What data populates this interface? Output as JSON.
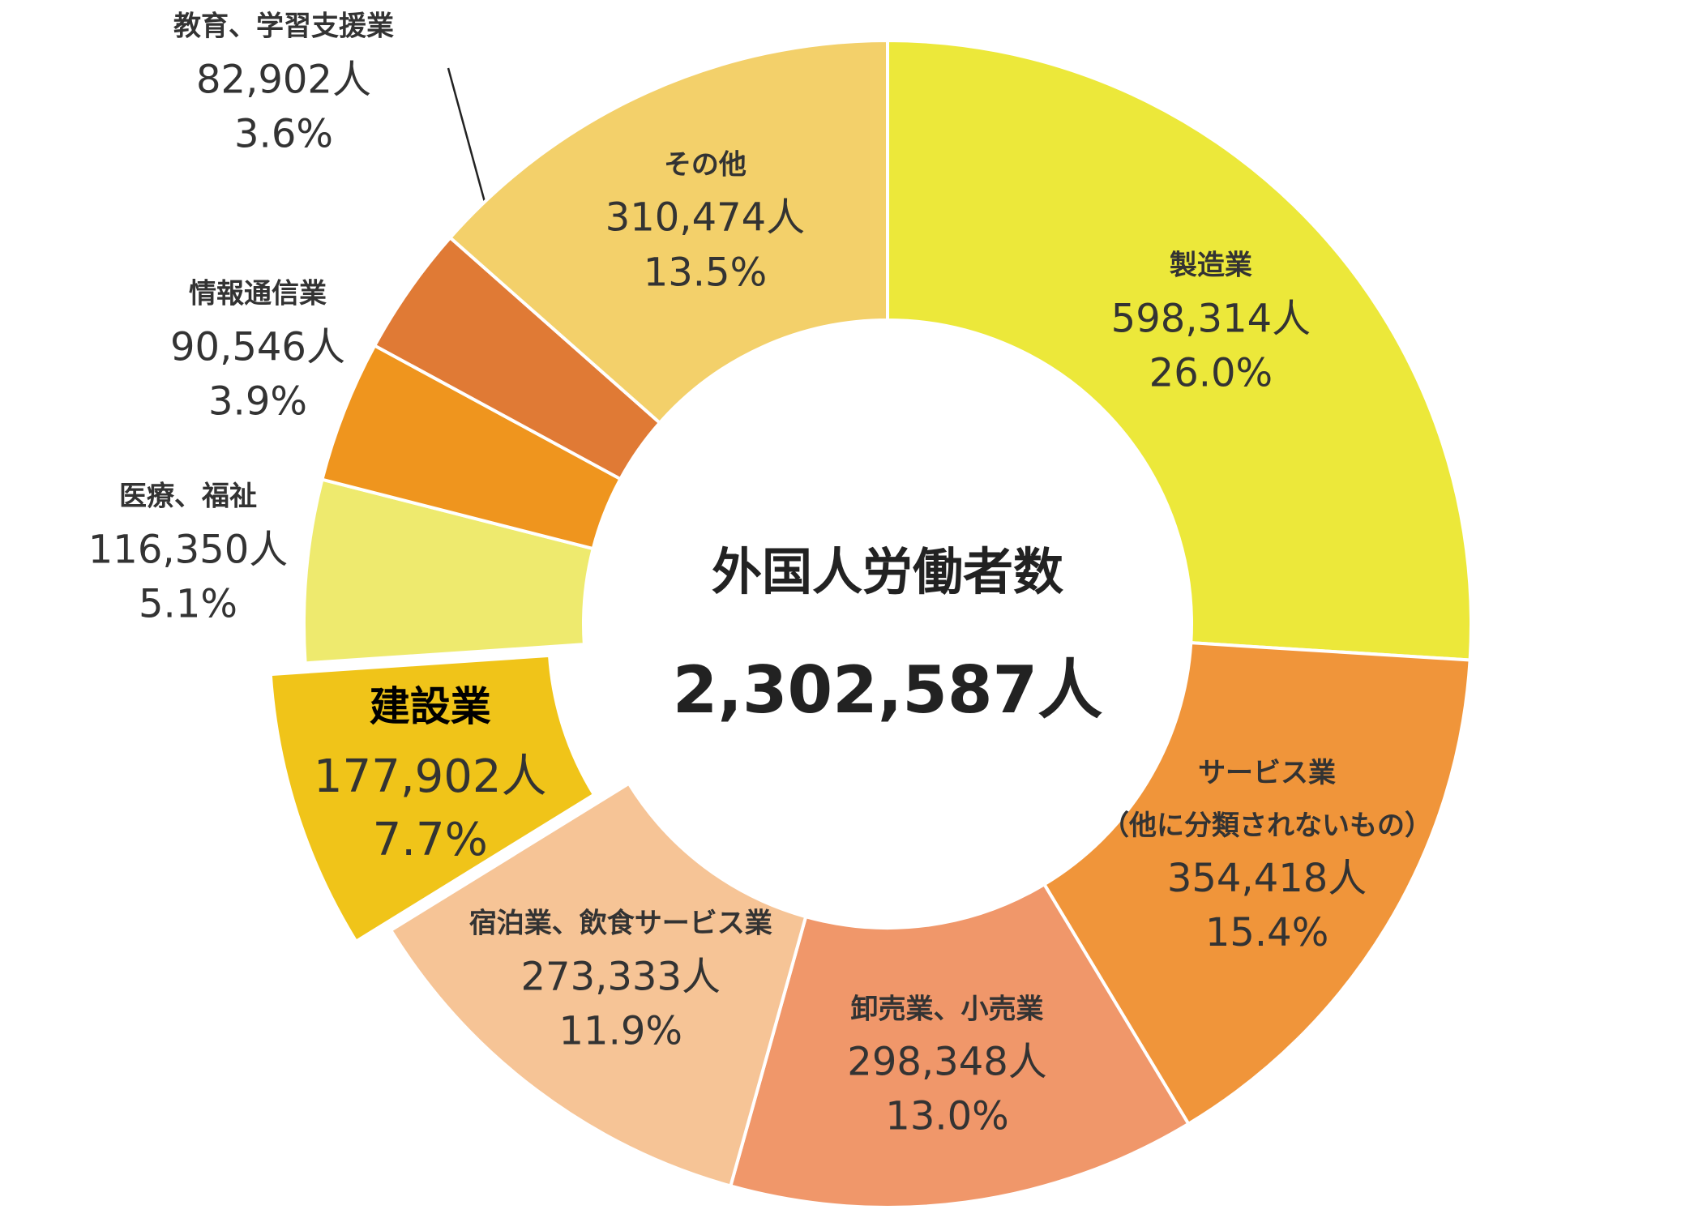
{
  "chart_data": {
    "type": "donut",
    "center_title": "外国人労働者数",
    "total": 2302587,
    "total_label": "2,302,587人",
    "categories": [
      "製造業",
      "サービス業\n（他に分類されないもの）",
      "卸売業、小売業",
      "宿泊業、飲食サービス業",
      "建設業",
      "医療、福祉",
      "情報通信業",
      "教育、学習支援業",
      "その他"
    ],
    "values": [
      598314,
      354418,
      298348,
      273333,
      177902,
      116350,
      90546,
      82902,
      310474
    ],
    "value_labels": [
      "598,314人",
      "354,418人",
      "298,348人",
      "273,333人",
      "177,902人",
      "116,350人",
      "90,546人",
      "82,902人",
      "310,474人"
    ],
    "percents": [
      26.0,
      15.4,
      13.0,
      11.9,
      7.7,
      5.1,
      3.9,
      3.6,
      13.5
    ],
    "percent_labels": [
      "26.0%",
      "15.4%",
      "13.0%",
      "11.9%",
      "7.7%",
      "5.1%",
      "3.9%",
      "3.6%",
      "13.5%"
    ],
    "colors": [
      "#ece83a",
      "#f0953a",
      "#f0976a",
      "#f6c496",
      "#f0c419",
      "#eeea6e",
      "#ef951e",
      "#e07a35",
      "#f3d06a"
    ],
    "exploded": [
      false,
      false,
      false,
      false,
      true,
      false,
      false,
      false,
      false
    ]
  }
}
